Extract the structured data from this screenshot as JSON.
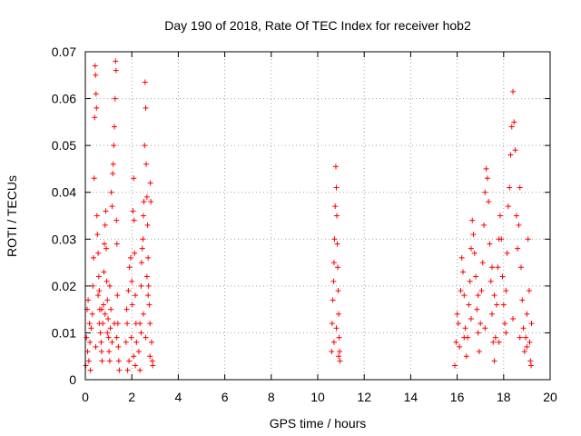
{
  "chart_data": {
    "type": "scatter",
    "title": "Day 190 of 2018, Rate Of TEC Index for receiver hob2",
    "xlabel": "GPS time / hours",
    "ylabel": "ROTI / TECUs",
    "xlim": [
      0,
      20
    ],
    "ylim": [
      0,
      0.07
    ],
    "xticks": [
      "0",
      "2",
      "4",
      "6",
      "8",
      "10",
      "12",
      "14",
      "16",
      "18",
      "20"
    ],
    "yticks": [
      "0",
      "0.01",
      "0.02",
      "0.03",
      "0.04",
      "0.05",
      "0.06",
      "0.07"
    ],
    "grid": true,
    "marker": "+",
    "color": "#ff0000",
    "series": [
      {
        "name": "ROTI",
        "points": [
          [
            0.02,
            0.003
          ],
          [
            0.05,
            0.009
          ],
          [
            0.08,
            0.015
          ],
          [
            0.1,
            0.006
          ],
          [
            0.12,
            0.017
          ],
          [
            0.15,
            0.004
          ],
          [
            0.18,
            0.012
          ],
          [
            0.2,
            0.008
          ],
          [
            0.22,
            0.002
          ],
          [
            0.25,
            0.011
          ],
          [
            0.3,
            0.014
          ],
          [
            0.32,
            0.02
          ],
          [
            0.35,
            0.026
          ],
          [
            0.38,
            0.043
          ],
          [
            0.4,
            0.056
          ],
          [
            0.42,
            0.067
          ],
          [
            0.44,
            0.065
          ],
          [
            0.46,
            0.061
          ],
          [
            0.48,
            0.058
          ],
          [
            0.5,
            0.035
          ],
          [
            0.52,
            0.031
          ],
          [
            0.55,
            0.027
          ],
          [
            0.58,
            0.022
          ],
          [
            0.6,
            0.019
          ],
          [
            0.62,
            0.015
          ],
          [
            0.65,
            0.01
          ],
          [
            0.68,
            0.008
          ],
          [
            0.7,
            0.006
          ],
          [
            0.72,
            0.004
          ],
          [
            0.75,
            0.012
          ],
          [
            0.78,
            0.016
          ],
          [
            0.8,
            0.023
          ],
          [
            0.82,
            0.029
          ],
          [
            0.85,
            0.033
          ],
          [
            0.88,
            0.036
          ],
          [
            0.9,
            0.028
          ],
          [
            0.92,
            0.021
          ],
          [
            0.95,
            0.017
          ],
          [
            0.98,
            0.013
          ],
          [
            1.0,
            0.009
          ],
          [
            1.02,
            0.006
          ],
          [
            1.05,
            0.004
          ],
          [
            1.08,
            0.011
          ],
          [
            1.1,
            0.015
          ],
          [
            1.12,
            0.04
          ],
          [
            1.15,
            0.037
          ],
          [
            1.18,
            0.044
          ],
          [
            1.2,
            0.046
          ],
          [
            1.22,
            0.05
          ],
          [
            1.25,
            0.054
          ],
          [
            1.28,
            0.06
          ],
          [
            1.3,
            0.068
          ],
          [
            1.32,
            0.066
          ],
          [
            1.34,
            0.034
          ],
          [
            1.36,
            0.029
          ],
          [
            1.38,
            0.018
          ],
          [
            1.4,
            0.012
          ],
          [
            1.42,
            0.007
          ],
          [
            1.44,
            0.004
          ],
          [
            1.46,
            0.002
          ],
          [
            0.55,
            0.018
          ],
          [
            0.6,
            0.012
          ],
          [
            0.7,
            0.015
          ],
          [
            0.85,
            0.014
          ],
          [
            0.95,
            0.01
          ],
          [
            1.05,
            0.02
          ],
          [
            1.15,
            0.008
          ],
          [
            1.25,
            0.012
          ],
          [
            1.35,
            0.009
          ],
          [
            0.45,
            0.007
          ],
          [
            1.75,
            0.008
          ],
          [
            1.8,
            0.012
          ],
          [
            1.85,
            0.019
          ],
          [
            1.9,
            0.024
          ],
          [
            1.95,
            0.026
          ],
          [
            2.0,
            0.021
          ],
          [
            2.02,
            0.016
          ],
          [
            2.05,
            0.036
          ],
          [
            2.08,
            0.043
          ],
          [
            2.1,
            0.034
          ],
          [
            2.12,
            0.027
          ],
          [
            2.15,
            0.018
          ],
          [
            2.18,
            0.012
          ],
          [
            2.2,
            0.008
          ],
          [
            1.78,
            0.015
          ],
          [
            1.88,
            0.004
          ],
          [
            1.98,
            0.009
          ],
          [
            2.08,
            0.005
          ],
          [
            2.15,
            0.003
          ],
          [
            1.82,
            0.002
          ],
          [
            2.3,
            0.006
          ],
          [
            2.35,
            0.012
          ],
          [
            2.4,
            0.02
          ],
          [
            2.42,
            0.025
          ],
          [
            2.45,
            0.028
          ],
          [
            2.48,
            0.03
          ],
          [
            2.5,
            0.035
          ],
          [
            2.52,
            0.038
          ],
          [
            2.55,
            0.05
          ],
          [
            2.57,
            0.0635
          ],
          [
            2.6,
            0.058
          ],
          [
            2.62,
            0.046
          ],
          [
            2.65,
            0.039
          ],
          [
            2.68,
            0.033
          ],
          [
            2.7,
            0.026
          ],
          [
            2.72,
            0.02
          ],
          [
            2.75,
            0.016
          ],
          [
            2.78,
            0.012
          ],
          [
            2.8,
            0.042
          ],
          [
            2.82,
            0.038
          ],
          [
            2.85,
            0.008
          ],
          [
            2.88,
            0.004
          ],
          [
            2.9,
            0.003
          ],
          [
            2.4,
            0.01
          ],
          [
            2.5,
            0.014
          ],
          [
            2.6,
            0.009
          ],
          [
            2.7,
            0.018
          ],
          [
            2.78,
            0.005
          ],
          [
            2.35,
            0.002
          ],
          [
            2.65,
            0.022
          ],
          [
            10.6,
            0.006
          ],
          [
            10.62,
            0.012
          ],
          [
            10.65,
            0.017
          ],
          [
            10.68,
            0.021
          ],
          [
            10.7,
            0.025
          ],
          [
            10.72,
            0.03
          ],
          [
            10.75,
            0.037
          ],
          [
            10.78,
            0.0455
          ],
          [
            10.8,
            0.041
          ],
          [
            10.82,
            0.035
          ],
          [
            10.84,
            0.029
          ],
          [
            10.86,
            0.024
          ],
          [
            10.88,
            0.019
          ],
          [
            10.9,
            0.014
          ],
          [
            10.92,
            0.009
          ],
          [
            10.94,
            0.006
          ],
          [
            10.96,
            0.004
          ],
          [
            10.7,
            0.008
          ],
          [
            10.8,
            0.011
          ],
          [
            10.9,
            0.005
          ],
          [
            15.9,
            0.003
          ],
          [
            15.95,
            0.008
          ],
          [
            16.0,
            0.014
          ],
          [
            16.05,
            0.012
          ],
          [
            16.1,
            0.007
          ],
          [
            16.15,
            0.019
          ],
          [
            16.2,
            0.026
          ],
          [
            16.25,
            0.023
          ],
          [
            16.3,
            0.018
          ],
          [
            16.35,
            0.011
          ],
          [
            16.4,
            0.005
          ],
          [
            16.45,
            0.009
          ],
          [
            16.5,
            0.016
          ],
          [
            16.55,
            0.021
          ],
          [
            16.6,
            0.028
          ],
          [
            16.65,
            0.034
          ],
          [
            16.7,
            0.031
          ],
          [
            16.75,
            0.027
          ],
          [
            16.8,
            0.022
          ],
          [
            16.85,
            0.015
          ],
          [
            16.9,
            0.01
          ],
          [
            16.95,
            0.006
          ],
          [
            17.0,
            0.012
          ],
          [
            17.05,
            0.019
          ],
          [
            17.1,
            0.025
          ],
          [
            17.15,
            0.033
          ],
          [
            17.2,
            0.04
          ],
          [
            17.25,
            0.045
          ],
          [
            17.3,
            0.043
          ],
          [
            17.35,
            0.038
          ],
          [
            17.4,
            0.029
          ],
          [
            17.45,
            0.021
          ],
          [
            17.5,
            0.014
          ],
          [
            17.55,
            0.008
          ],
          [
            17.6,
            0.004
          ],
          [
            17.65,
            0.009
          ],
          [
            17.7,
            0.016
          ],
          [
            17.75,
            0.024
          ],
          [
            17.8,
            0.03
          ],
          [
            17.85,
            0.035
          ],
          [
            17.9,
            0.03
          ],
          [
            17.95,
            0.022
          ],
          [
            18.0,
            0.016
          ],
          [
            18.05,
            0.012
          ],
          [
            18.1,
            0.019
          ],
          [
            18.15,
            0.027
          ],
          [
            18.2,
            0.037
          ],
          [
            18.25,
            0.041
          ],
          [
            18.3,
            0.048
          ],
          [
            18.35,
            0.054
          ],
          [
            18.4,
            0.0615
          ],
          [
            18.45,
            0.055
          ],
          [
            18.5,
            0.049
          ],
          [
            18.55,
            0.035
          ],
          [
            18.6,
            0.028
          ],
          [
            18.65,
            0.033
          ],
          [
            18.7,
            0.041
          ],
          [
            18.75,
            0.024
          ],
          [
            18.8,
            0.017
          ],
          [
            18.85,
            0.011
          ],
          [
            18.9,
            0.006
          ],
          [
            18.95,
            0.009
          ],
          [
            19.0,
            0.014
          ],
          [
            19.05,
            0.03
          ],
          [
            19.1,
            0.019
          ],
          [
            19.12,
            0.008
          ],
          [
            19.15,
            0.004
          ],
          [
            19.18,
            0.003
          ],
          [
            19.2,
            0.012
          ],
          [
            16.3,
            0.009
          ],
          [
            16.6,
            0.013
          ],
          [
            16.9,
            0.018
          ],
          [
            17.2,
            0.011
          ],
          [
            17.5,
            0.024
          ],
          [
            17.8,
            0.008
          ],
          [
            18.1,
            0.01
          ],
          [
            18.4,
            0.013
          ],
          [
            18.7,
            0.009
          ],
          [
            19.0,
            0.007
          ],
          [
            17.6,
            0.018
          ]
        ]
      }
    ]
  }
}
